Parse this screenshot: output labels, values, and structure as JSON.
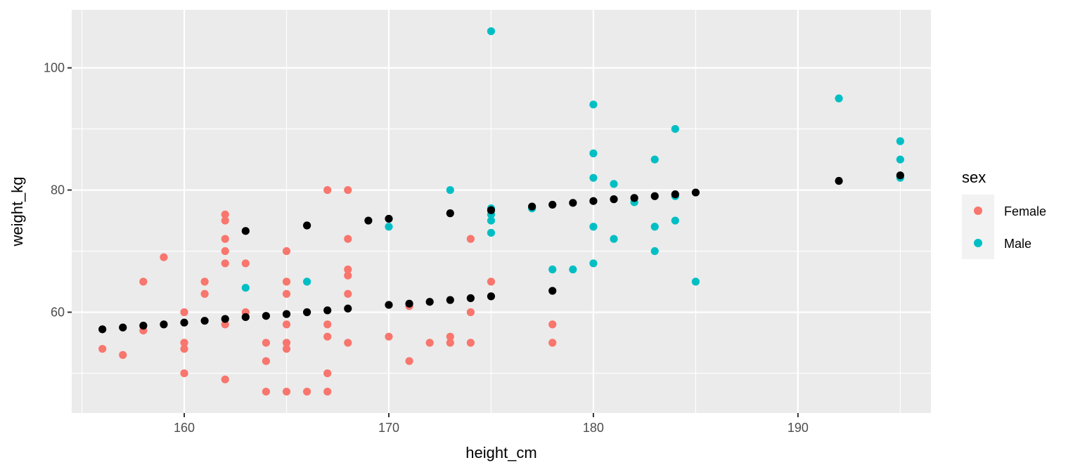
{
  "chart_data": {
    "type": "scatter",
    "title": "",
    "xlabel": "height_cm",
    "ylabel": "weight_kg",
    "xlim": [
      154.5,
      196.5
    ],
    "ylim": [
      43.5,
      109.5
    ],
    "x_ticks": [
      160,
      170,
      180,
      190
    ],
    "y_ticks": [
      60,
      80,
      100
    ],
    "grid": true,
    "legend": {
      "title": "sex",
      "placement": "right"
    },
    "colors": {
      "Female": "#F8766D",
      "Male": "#00BFC4",
      "fitted": "#000000",
      "panel": "#EBEBEB",
      "grid": "#FFFFFF"
    },
    "series": [
      {
        "name": "Female",
        "points": [
          [
            156,
            54
          ],
          [
            157,
            53
          ],
          [
            158,
            65
          ],
          [
            158,
            57
          ],
          [
            159,
            69
          ],
          [
            160,
            60
          ],
          [
            160,
            55
          ],
          [
            160,
            54
          ],
          [
            160,
            50
          ],
          [
            161,
            65
          ],
          [
            161,
            63
          ],
          [
            162,
            76
          ],
          [
            162,
            75
          ],
          [
            162,
            72
          ],
          [
            162,
            70
          ],
          [
            162,
            68
          ],
          [
            162,
            58
          ],
          [
            162,
            49
          ],
          [
            163,
            68
          ],
          [
            163,
            60
          ],
          [
            164,
            55
          ],
          [
            164,
            52
          ],
          [
            164,
            47
          ],
          [
            165,
            70
          ],
          [
            165,
            65
          ],
          [
            165,
            63
          ],
          [
            165,
            58
          ],
          [
            165,
            55
          ],
          [
            165,
            54
          ],
          [
            165,
            47
          ],
          [
            166,
            47
          ],
          [
            167,
            80
          ],
          [
            167,
            58
          ],
          [
            167,
            56
          ],
          [
            167,
            50
          ],
          [
            167,
            47
          ],
          [
            168,
            80
          ],
          [
            168,
            72
          ],
          [
            168,
            67
          ],
          [
            168,
            66
          ],
          [
            168,
            63
          ],
          [
            168,
            55
          ],
          [
            170,
            56
          ],
          [
            171,
            61
          ],
          [
            171,
            52
          ],
          [
            172,
            55
          ],
          [
            173,
            56
          ],
          [
            173,
            55
          ],
          [
            174,
            72
          ],
          [
            174,
            60
          ],
          [
            174,
            55
          ],
          [
            175,
            65
          ],
          [
            178,
            58
          ],
          [
            178,
            55
          ]
        ]
      },
      {
        "name": "Male",
        "points": [
          [
            163,
            64
          ],
          [
            166,
            65
          ],
          [
            170,
            74
          ],
          [
            173,
            80
          ],
          [
            175,
            106
          ],
          [
            175,
            77
          ],
          [
            175,
            76
          ],
          [
            175,
            75
          ],
          [
            175,
            73
          ],
          [
            177,
            77
          ],
          [
            178,
            67
          ],
          [
            179,
            67
          ],
          [
            180,
            94
          ],
          [
            180,
            86
          ],
          [
            180,
            82
          ],
          [
            180,
            74
          ],
          [
            180,
            68
          ],
          [
            181,
            81
          ],
          [
            181,
            72
          ],
          [
            182,
            78
          ],
          [
            183,
            85
          ],
          [
            183,
            74
          ],
          [
            183,
            70
          ],
          [
            184,
            90
          ],
          [
            184,
            79
          ],
          [
            184,
            75
          ],
          [
            185,
            65
          ],
          [
            192,
            95
          ],
          [
            195,
            88
          ],
          [
            195,
            85
          ],
          [
            195,
            82
          ]
        ]
      },
      {
        "name": "",
        "points": [
          [
            156,
            57.2
          ],
          [
            157,
            57.5
          ],
          [
            158,
            57.8
          ],
          [
            159,
            58.0
          ],
          [
            160,
            58.3
          ],
          [
            161,
            58.6
          ],
          [
            162,
            58.9
          ],
          [
            163,
            59.2
          ],
          [
            163,
            73.3
          ],
          [
            164,
            59.4
          ],
          [
            165,
            59.7
          ],
          [
            166,
            60.0
          ],
          [
            166,
            74.2
          ],
          [
            167,
            60.3
          ],
          [
            168,
            60.6
          ],
          [
            169,
            75.0
          ],
          [
            170,
            61.2
          ],
          [
            170,
            75.3
          ],
          [
            171,
            61.4
          ],
          [
            172,
            61.7
          ],
          [
            173,
            62.0
          ],
          [
            173,
            76.2
          ],
          [
            174,
            62.3
          ],
          [
            175,
            62.6
          ],
          [
            175,
            76.7
          ],
          [
            177,
            77.3
          ],
          [
            178,
            63.5
          ],
          [
            178,
            77.6
          ],
          [
            179,
            77.9
          ],
          [
            180,
            78.2
          ],
          [
            181,
            78.5
          ],
          [
            182,
            78.7
          ],
          [
            183,
            79.0
          ],
          [
            184,
            79.3
          ],
          [
            185,
            79.6
          ],
          [
            192,
            81.5
          ],
          [
            195,
            82.4
          ]
        ]
      }
    ]
  }
}
